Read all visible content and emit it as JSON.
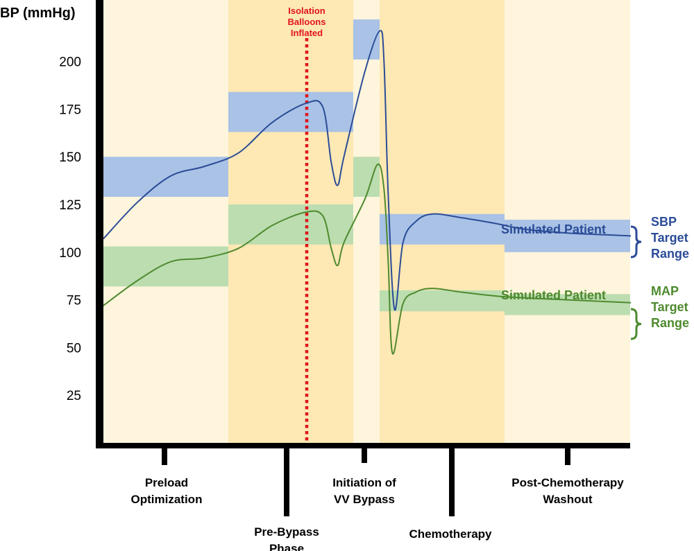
{
  "chart_data": {
    "type": "line",
    "ylabel": "BP (mmHg)",
    "y_ticks": [
      25,
      50,
      75,
      100,
      125,
      150,
      175,
      200
    ],
    "colors": {
      "sbp": "#2B4C97",
      "map": "#4E8A2E",
      "sbp_band": "#A9C2E6",
      "map_band": "#BCDDB0",
      "phase_light": "#FEF5DC",
      "phase_dark": "#FEE8B4",
      "event": "#E0141B",
      "axis": "#000000"
    },
    "phases": [
      {
        "label": "Preload\nOptimization",
        "shade": "light"
      },
      {
        "label": "Pre-Bypass\nPhase",
        "shade": "dark"
      },
      {
        "label": "Initiation of\nVV Bypass",
        "shade": "light"
      },
      {
        "label": "Chemotherapy",
        "shade": "dark"
      },
      {
        "label": "Post-Chemotherapy\nWashout",
        "shade": "light"
      }
    ],
    "event_annotation": "Isolation\nBalloons\nInflated",
    "sbp_target_bands": [
      [
        129,
        150
      ],
      [
        163,
        184
      ],
      [
        201,
        222
      ],
      [
        104,
        120
      ],
      [
        100,
        117
      ]
    ],
    "map_target_bands": [
      [
        82,
        103
      ],
      [
        104,
        125
      ],
      [
        129,
        150
      ],
      [
        69,
        80
      ],
      [
        67,
        78
      ]
    ],
    "series": [
      {
        "label": "Simulated Patient",
        "points": [
          [
            0,
            107
          ],
          [
            0.08,
            126
          ],
          [
            0.16,
            140
          ],
          [
            0.24,
            145
          ],
          [
            0.32,
            152
          ],
          [
            0.4,
            168
          ],
          [
            0.48,
            178
          ],
          [
            0.52,
            176
          ],
          [
            0.54,
            147
          ],
          [
            0.555,
            135
          ],
          [
            0.57,
            150
          ],
          [
            0.62,
            195
          ],
          [
            0.655,
            216
          ],
          [
            0.665,
            200
          ],
          [
            0.675,
            130
          ],
          [
            0.69,
            70
          ],
          [
            0.71,
            105
          ],
          [
            0.74,
            116
          ],
          [
            0.78,
            120
          ],
          [
            0.85,
            118
          ],
          [
            0.93,
            115
          ],
          [
            1.0,
            112
          ],
          [
            1.1,
            110
          ],
          [
            1.2,
            109
          ],
          [
            1.25,
            108.5
          ]
        ]
      },
      {
        "label": "Simulated Patient",
        "points": [
          [
            0,
            72
          ],
          [
            0.08,
            85
          ],
          [
            0.16,
            95
          ],
          [
            0.24,
            97
          ],
          [
            0.32,
            102
          ],
          [
            0.4,
            114
          ],
          [
            0.48,
            121
          ],
          [
            0.52,
            119
          ],
          [
            0.54,
            102
          ],
          [
            0.555,
            93
          ],
          [
            0.57,
            105
          ],
          [
            0.62,
            128
          ],
          [
            0.65,
            146
          ],
          [
            0.665,
            133
          ],
          [
            0.675,
            95
          ],
          [
            0.685,
            47
          ],
          [
            0.71,
            73
          ],
          [
            0.74,
            79
          ],
          [
            0.78,
            81
          ],
          [
            0.85,
            79
          ],
          [
            0.93,
            77
          ],
          [
            1.0,
            76
          ],
          [
            1.1,
            75
          ],
          [
            1.2,
            74
          ],
          [
            1.25,
            73.5
          ]
        ]
      }
    ],
    "range_labels": [
      {
        "text": "SBP\nTarget\nRange",
        "series": "sbp"
      },
      {
        "text": "MAP\nTarget\nRange",
        "series": "map"
      }
    ]
  }
}
